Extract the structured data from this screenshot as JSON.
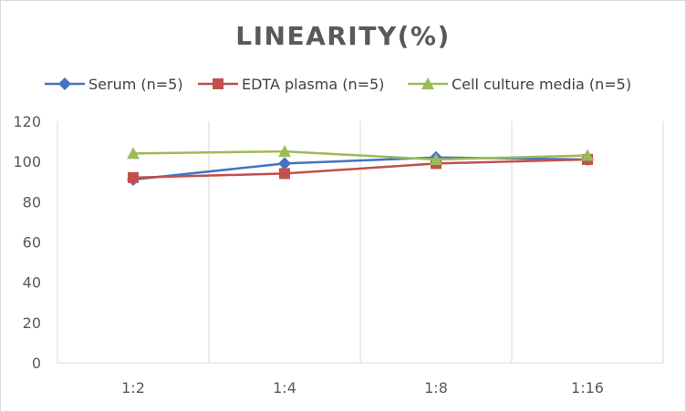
{
  "chart_data": {
    "type": "line",
    "title": "LINEARITY(%)",
    "xlabel": "",
    "ylabel": "",
    "categories": [
      "1:2",
      "1:4",
      "1:8",
      "1:16"
    ],
    "ylim": [
      0,
      120
    ],
    "yticks": [
      0,
      20,
      40,
      60,
      80,
      100,
      120
    ],
    "grid": "vertical",
    "legend_position": "top",
    "series": [
      {
        "name": "Serum (n=5)",
        "color": "#4472c4",
        "marker": "diamond",
        "values": [
          91,
          99,
          102,
          101
        ]
      },
      {
        "name": "EDTA plasma (n=5)",
        "color": "#c0504d",
        "marker": "square",
        "values": [
          92,
          94,
          99,
          101
        ]
      },
      {
        "name": "Cell culture media (n=5)",
        "color": "#9bbb59",
        "marker": "triangle",
        "values": [
          104,
          105,
          101,
          103
        ]
      }
    ]
  }
}
